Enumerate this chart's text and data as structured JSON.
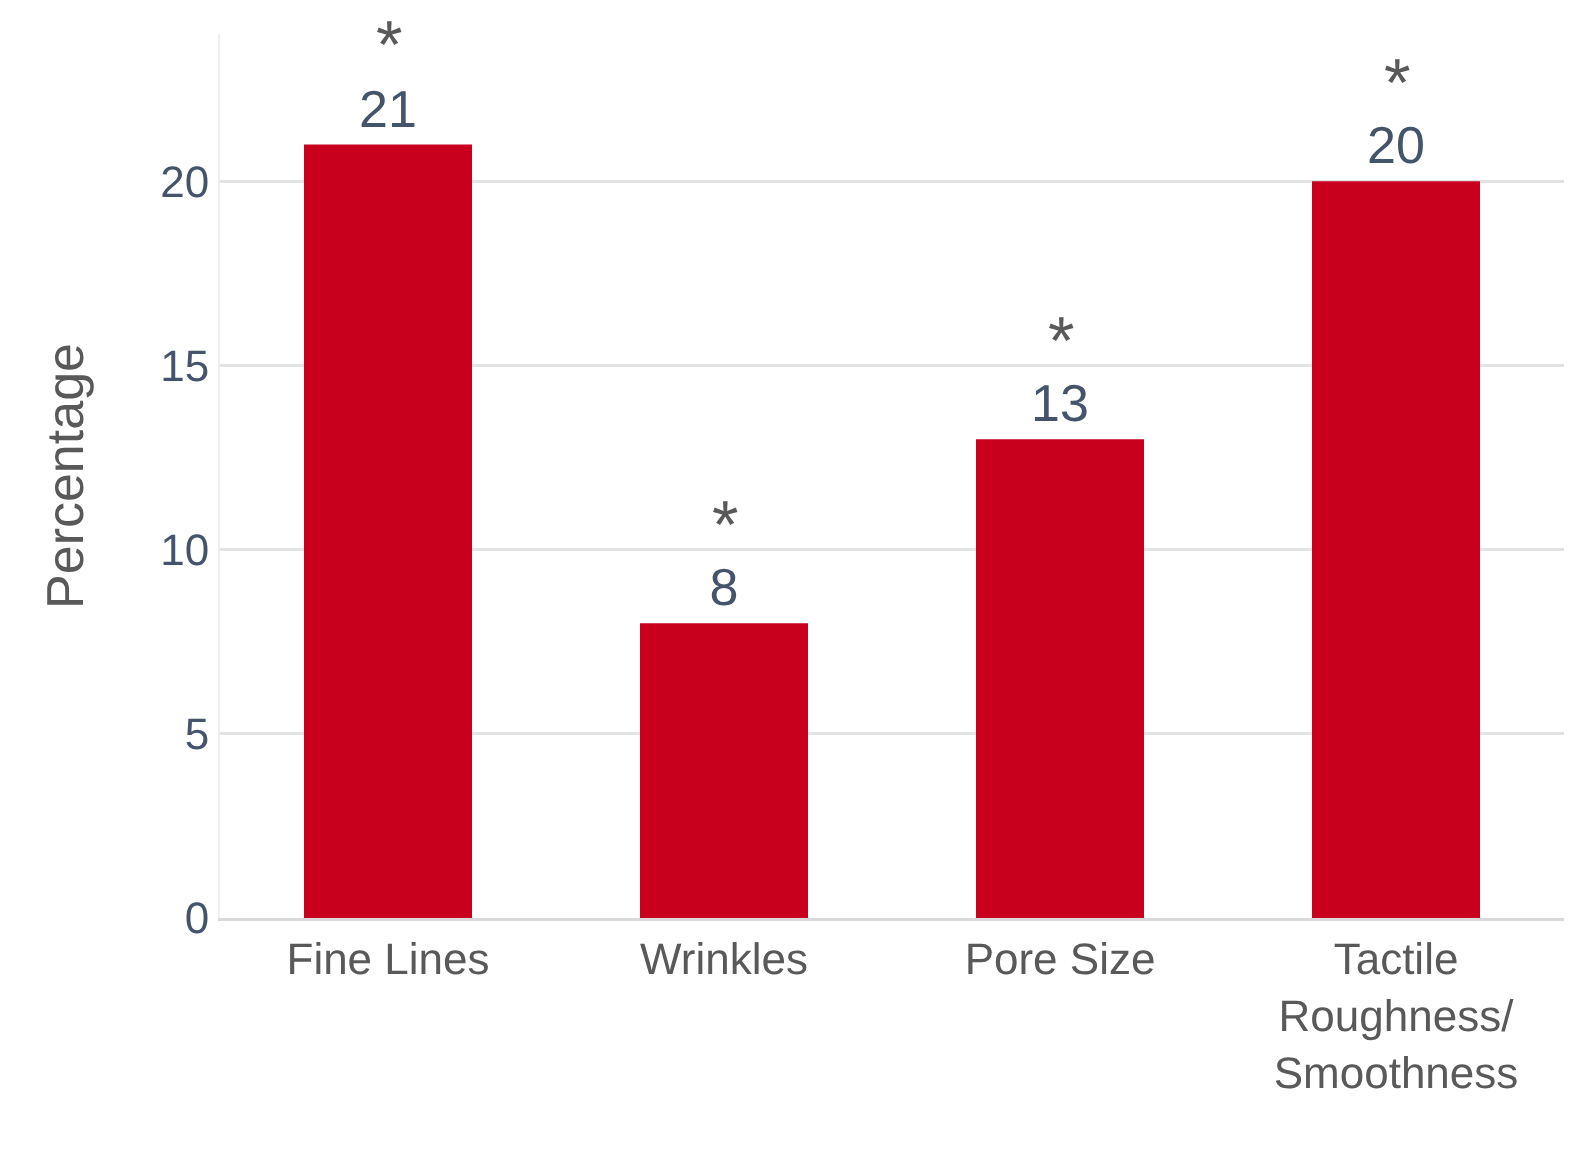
{
  "chart_data": {
    "type": "bar",
    "ylabel": "Percentage",
    "categories": [
      "Fine Lines",
      "Wrinkles",
      "Pore Size",
      "Tactile\nRoughness/\nSmoothness"
    ],
    "values": [
      21,
      8,
      13,
      20
    ],
    "color": "#c8001e",
    "data_labels": true,
    "ylim": [
      0,
      24
    ],
    "yticks": [
      0,
      5,
      10,
      15,
      20
    ],
    "grid": "y",
    "legend": false,
    "annotations": [
      {
        "text": "*",
        "x": "Fine Lines",
        "y": 21
      },
      {
        "text": "*",
        "x": "Wrinkles",
        "y": 8
      },
      {
        "text": "*",
        "x": "Pore Size",
        "y": 13
      },
      {
        "text": "*",
        "x": "Tactile\nRoughness/\nSmoothness",
        "y": 20
      }
    ]
  }
}
